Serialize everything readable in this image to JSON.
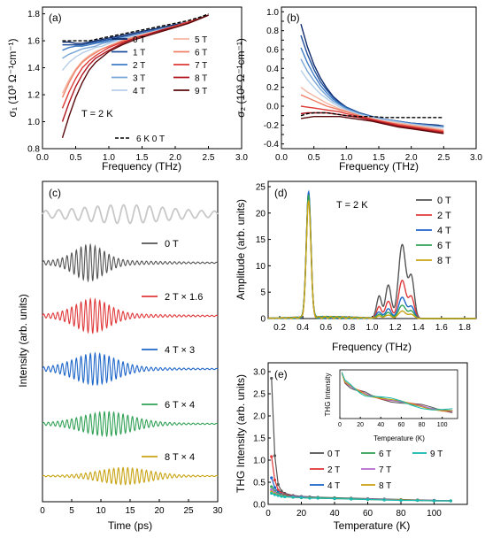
{
  "chart_data": [
    {
      "panel": "a",
      "type": "line",
      "panel_label": "(a)",
      "xlabel": "Frequency (THz)",
      "ylabel": "σ₁ (10³ Ω⁻¹cm⁻¹)",
      "annotation": "T = 2 K",
      "xlim": [
        0.0,
        3.0
      ],
      "ylim": [
        0.8,
        1.85
      ],
      "xticks": [
        "0.0",
        "0.5",
        "1.0",
        "1.5",
        "2.0",
        "2.5",
        "3.0"
      ],
      "yticks": [
        "0.8",
        "1.0",
        "1.2",
        "1.4",
        "1.6",
        "1.8"
      ],
      "legend_position": "bottom-right",
      "x": [
        0.3,
        0.4,
        0.5,
        0.6,
        0.7,
        0.8,
        0.9,
        1.0,
        1.2,
        1.4,
        1.6,
        1.8,
        2.0,
        2.2,
        2.4,
        2.5
      ],
      "series": [
        {
          "name": "0 T",
          "color": "#0d2a6b",
          "values": [
            1.59,
            1.59,
            1.58,
            1.58,
            1.59,
            1.6,
            1.61,
            1.62,
            1.64,
            1.66,
            1.68,
            1.7,
            1.72,
            1.74,
            1.77,
            1.79
          ]
        },
        {
          "name": "1 T",
          "color": "#1f4f9c",
          "values": [
            1.57,
            1.57,
            1.57,
            1.57,
            1.58,
            1.59,
            1.6,
            1.61,
            1.63,
            1.65,
            1.67,
            1.69,
            1.71,
            1.74,
            1.77,
            1.79
          ]
        },
        {
          "name": "2 T",
          "color": "#3f7cc4",
          "values": [
            1.53,
            1.55,
            1.56,
            1.56,
            1.57,
            1.58,
            1.59,
            1.6,
            1.62,
            1.64,
            1.67,
            1.69,
            1.71,
            1.74,
            1.77,
            1.79
          ]
        },
        {
          "name": "3 T",
          "color": "#78a6d8",
          "values": [
            1.47,
            1.5,
            1.52,
            1.54,
            1.55,
            1.56,
            1.58,
            1.59,
            1.62,
            1.64,
            1.66,
            1.69,
            1.71,
            1.74,
            1.77,
            1.79
          ]
        },
        {
          "name": "4 T",
          "color": "#b6cfe8",
          "values": [
            1.38,
            1.44,
            1.48,
            1.51,
            1.53,
            1.55,
            1.56,
            1.58,
            1.61,
            1.64,
            1.66,
            1.68,
            1.71,
            1.74,
            1.77,
            1.79
          ]
        },
        {
          "name": "5 T",
          "color": "#f4b6a2",
          "values": [
            1.21,
            1.31,
            1.39,
            1.45,
            1.49,
            1.52,
            1.54,
            1.56,
            1.6,
            1.63,
            1.66,
            1.68,
            1.71,
            1.74,
            1.77,
            1.79
          ]
        },
        {
          "name": "6 T",
          "color": "#ef8066",
          "values": [
            1.18,
            1.29,
            1.38,
            1.44,
            1.48,
            1.51,
            1.54,
            1.56,
            1.6,
            1.63,
            1.65,
            1.68,
            1.71,
            1.74,
            1.77,
            1.79
          ]
        },
        {
          "name": "7 T",
          "color": "#dd3a36",
          "values": [
            1.1,
            1.22,
            1.32,
            1.4,
            1.45,
            1.49,
            1.52,
            1.55,
            1.59,
            1.62,
            1.65,
            1.68,
            1.71,
            1.74,
            1.77,
            1.79
          ]
        },
        {
          "name": "8 T",
          "color": "#b0141e",
          "values": [
            1.0,
            1.14,
            1.26,
            1.35,
            1.42,
            1.47,
            1.5,
            1.53,
            1.58,
            1.62,
            1.65,
            1.68,
            1.7,
            1.73,
            1.77,
            1.79
          ]
        },
        {
          "name": "9 T",
          "color": "#5a0a0c",
          "values": [
            0.88,
            1.04,
            1.18,
            1.29,
            1.38,
            1.44,
            1.48,
            1.52,
            1.57,
            1.61,
            1.64,
            1.67,
            1.7,
            1.73,
            1.77,
            1.79
          ]
        },
        {
          "name": "6 K  0 T",
          "color": "#000000",
          "dashed": true,
          "values": [
            1.6,
            1.6,
            1.6,
            1.6,
            1.6,
            1.61,
            1.62,
            1.63,
            1.65,
            1.67,
            1.69,
            1.71,
            1.73,
            1.75,
            1.78,
            1.8
          ]
        }
      ]
    },
    {
      "panel": "b",
      "type": "line",
      "panel_label": "(b)",
      "xlabel": "Frequency (THz)",
      "ylabel": "σ₂ (10³ Ω⁻¹cm⁻¹)",
      "xlim": [
        0.0,
        3.0
      ],
      "ylim": [
        -0.45,
        1.05
      ],
      "xticks": [
        "0.0",
        "0.5",
        "1.0",
        "1.5",
        "2.0",
        "2.5",
        "3.0"
      ],
      "yticks": [
        "-0.4",
        "-0.3",
        "-0.2",
        "-0.1",
        "0.0",
        "0.1",
        "0.2",
        "0.3",
        "0.4",
        "0.5",
        "0.6",
        "0.7",
        "0.8",
        "0.9",
        "1.0"
      ],
      "x": [
        0.3,
        0.4,
        0.5,
        0.6,
        0.7,
        0.8,
        0.9,
        1.0,
        1.2,
        1.4,
        1.6,
        1.8,
        2.0,
        2.2,
        2.4,
        2.5
      ],
      "series": [
        {
          "name": "0 T",
          "color": "#0d2a6b",
          "values": [
            0.87,
            0.63,
            0.44,
            0.3,
            0.19,
            0.1,
            0.04,
            -0.01,
            -0.07,
            -0.11,
            -0.14,
            -0.16,
            -0.18,
            -0.19,
            -0.2,
            -0.21
          ]
        },
        {
          "name": "1 T",
          "color": "#1f4f9c",
          "values": [
            0.75,
            0.55,
            0.39,
            0.26,
            0.17,
            0.09,
            0.03,
            -0.01,
            -0.07,
            -0.11,
            -0.14,
            -0.16,
            -0.18,
            -0.19,
            -0.21,
            -0.21
          ]
        },
        {
          "name": "2 T",
          "color": "#3f7cc4",
          "values": [
            0.62,
            0.46,
            0.33,
            0.22,
            0.14,
            0.07,
            0.02,
            -0.02,
            -0.08,
            -0.11,
            -0.14,
            -0.16,
            -0.18,
            -0.2,
            -0.21,
            -0.22
          ]
        },
        {
          "name": "3 T",
          "color": "#78a6d8",
          "values": [
            0.5,
            0.37,
            0.27,
            0.18,
            0.11,
            0.05,
            0.01,
            -0.03,
            -0.08,
            -0.12,
            -0.14,
            -0.17,
            -0.19,
            -0.2,
            -0.22,
            -0.22
          ]
        },
        {
          "name": "4 T",
          "color": "#b6cfe8",
          "values": [
            0.38,
            0.28,
            0.2,
            0.13,
            0.08,
            0.03,
            -0.01,
            -0.04,
            -0.09,
            -0.12,
            -0.15,
            -0.17,
            -0.19,
            -0.21,
            -0.22,
            -0.23
          ]
        },
        {
          "name": "5 T",
          "color": "#f4b6a2",
          "values": [
            0.2,
            0.15,
            0.11,
            0.07,
            0.03,
            0.0,
            -0.03,
            -0.05,
            -0.1,
            -0.13,
            -0.16,
            -0.18,
            -0.2,
            -0.22,
            -0.24,
            -0.25
          ]
        },
        {
          "name": "6 T",
          "color": "#ef8066",
          "values": [
            0.12,
            0.09,
            0.06,
            0.03,
            0.0,
            -0.02,
            -0.04,
            -0.06,
            -0.1,
            -0.14,
            -0.17,
            -0.19,
            -0.21,
            -0.23,
            -0.25,
            -0.26
          ]
        },
        {
          "name": "7 T",
          "color": "#dd3a36",
          "values": [
            0.0,
            -0.01,
            -0.02,
            -0.03,
            -0.04,
            -0.05,
            -0.06,
            -0.08,
            -0.11,
            -0.14,
            -0.17,
            -0.2,
            -0.22,
            -0.24,
            -0.26,
            -0.27
          ]
        },
        {
          "name": "8 T",
          "color": "#b0141e",
          "values": [
            -0.08,
            -0.07,
            -0.07,
            -0.07,
            -0.07,
            -0.08,
            -0.09,
            -0.1,
            -0.12,
            -0.15,
            -0.18,
            -0.21,
            -0.23,
            -0.25,
            -0.27,
            -0.28
          ]
        },
        {
          "name": "9 T",
          "color": "#5a0a0c",
          "values": [
            -0.13,
            -0.12,
            -0.11,
            -0.11,
            -0.11,
            -0.11,
            -0.11,
            -0.12,
            -0.14,
            -0.16,
            -0.19,
            -0.22,
            -0.24,
            -0.26,
            -0.28,
            -0.29
          ]
        },
        {
          "name": "6 K  0 T",
          "color": "#000000",
          "dashed": true,
          "values": [
            -0.1,
            -0.08,
            -0.07,
            -0.07,
            -0.07,
            -0.08,
            -0.09,
            -0.1,
            -0.11,
            -0.11,
            -0.12,
            -0.12,
            -0.12,
            -0.12,
            -0.12,
            -0.12
          ]
        }
      ]
    },
    {
      "panel": "c",
      "type": "line",
      "panel_label": "(c)",
      "xlabel": "Time (ps)",
      "ylabel": "Intensity (arb. units)",
      "xlim": [
        0,
        30
      ],
      "xticks": [
        "0",
        "5",
        "10",
        "15",
        "20",
        "25",
        "30"
      ],
      "note": "stacked time-domain traces, offset vertically",
      "series": [
        {
          "name": "",
          "color": "#c8c8c8",
          "center_ps": 14,
          "width_ps": 10,
          "amplitude": 0.35,
          "freq_thz": 0.45
        },
        {
          "name": "0 T",
          "color": "#555555",
          "center_ps": 8,
          "width_ps": 3.5,
          "amplitude": 0.75,
          "freq_thz": 1.25
        },
        {
          "name": "2 T × 1.6",
          "color": "#e0393b",
          "center_ps": 8.5,
          "width_ps": 4,
          "amplitude": 0.7,
          "freq_thz": 1.25
        },
        {
          "name": "4 T × 3",
          "color": "#1f67c9",
          "center_ps": 9,
          "width_ps": 5,
          "amplitude": 0.65,
          "freq_thz": 1.25
        },
        {
          "name": "6 T × 4",
          "color": "#32a257",
          "center_ps": 11,
          "width_ps": 6,
          "amplitude": 0.5,
          "freq_thz": 1.25
        },
        {
          "name": "8 T × 4",
          "color": "#c9a413",
          "center_ps": 14,
          "width_ps": 6,
          "amplitude": 0.35,
          "freq_thz": 1.25
        }
      ]
    },
    {
      "panel": "d",
      "type": "line",
      "panel_label": "(d)",
      "xlabel": "Frequency (THz)",
      "ylabel": "Amplitude (arb. units)",
      "annotation": "T = 2 K",
      "xlim": [
        0.1,
        1.9
      ],
      "ylim": [
        0,
        26
      ],
      "xticks": [
        "0.2",
        "0.4",
        "0.6",
        "0.8",
        "1.0",
        "1.2",
        "1.4",
        "1.6",
        "1.8"
      ],
      "yticks": [
        "0",
        "5",
        "10",
        "15",
        "20",
        "25"
      ],
      "legend_position": "top-right",
      "series": [
        {
          "name": "0 T",
          "color": "#555555",
          "fundamental": 23.5,
          "third_harmonic": 14.0
        },
        {
          "name": "2 T",
          "color": "#e0393b",
          "fundamental": 23.2,
          "third_harmonic": 7.2
        },
        {
          "name": "4 T",
          "color": "#1f67c9",
          "fundamental": 23.8,
          "third_harmonic": 4.0
        },
        {
          "name": "6 T",
          "color": "#32a257",
          "fundamental": 23.0,
          "third_harmonic": 2.5
        },
        {
          "name": "8 T",
          "color": "#c9a413",
          "fundamental": 22.2,
          "third_harmonic": 1.4
        }
      ]
    },
    {
      "panel": "e",
      "type": "line",
      "panel_label": "(e)",
      "xlabel": "Temperature (K)",
      "ylabel": "THG Intensity (arb. units)",
      "xlim": [
        0,
        120
      ],
      "ylim": [
        0,
        3.2
      ],
      "xticks": [
        "0",
        "20",
        "40",
        "60",
        "80",
        "100"
      ],
      "yticks": [
        "0.0",
        "0.5",
        "1.0",
        "1.5",
        "2.0",
        "2.5",
        "3.0"
      ],
      "legend_position": "bottom-right",
      "x": [
        2,
        4,
        6,
        8,
        10,
        15,
        20,
        25,
        30,
        40,
        50,
        60,
        70,
        80,
        90,
        100,
        110
      ],
      "series": [
        {
          "name": "0 T",
          "color": "#555555",
          "values": [
            2.85,
            1.1,
            0.45,
            0.3,
            0.25,
            0.2,
            0.18,
            0.17,
            0.16,
            0.15,
            0.14,
            0.13,
            0.12,
            0.11,
            0.1,
            0.09,
            0.08
          ]
        },
        {
          "name": "2 T",
          "color": "#e0393b",
          "values": [
            1.08,
            0.55,
            0.32,
            0.25,
            0.22,
            0.19,
            0.17,
            0.16,
            0.15,
            0.14,
            0.13,
            0.12,
            0.11,
            0.1,
            0.09,
            0.09,
            0.08
          ]
        },
        {
          "name": "4 T",
          "color": "#1f67c9",
          "values": [
            0.6,
            0.38,
            0.27,
            0.22,
            0.2,
            0.18,
            0.17,
            0.16,
            0.15,
            0.14,
            0.13,
            0.12,
            0.11,
            0.1,
            0.09,
            0.09,
            0.08
          ]
        },
        {
          "name": "6 T",
          "color": "#32a257",
          "values": [
            0.4,
            0.3,
            0.24,
            0.21,
            0.19,
            0.17,
            0.16,
            0.15,
            0.15,
            0.14,
            0.13,
            0.12,
            0.11,
            0.1,
            0.09,
            0.08,
            0.08
          ]
        },
        {
          "name": "7 T",
          "color": "#b46ed0",
          "values": [
            0.33,
            0.27,
            0.22,
            0.2,
            0.18,
            0.17,
            0.16,
            0.15,
            0.14,
            0.13,
            0.12,
            0.12,
            0.11,
            0.1,
            0.09,
            0.08,
            0.08
          ]
        },
        {
          "name": "8 T",
          "color": "#c9a413",
          "values": [
            0.28,
            0.24,
            0.21,
            0.19,
            0.18,
            0.16,
            0.15,
            0.15,
            0.14,
            0.13,
            0.12,
            0.11,
            0.1,
            0.1,
            0.09,
            0.08,
            0.08
          ]
        },
        {
          "name": "9 T",
          "color": "#17b8b0",
          "values": [
            0.25,
            0.22,
            0.2,
            0.18,
            0.17,
            0.16,
            0.15,
            0.14,
            0.14,
            0.13,
            0.12,
            0.11,
            0.1,
            0.09,
            0.09,
            0.08,
            0.08
          ]
        }
      ],
      "inset": {
        "xlabel": "Temperature (K)",
        "ylabel": "THG Intensity",
        "xlim": [
          0,
          115
        ],
        "xticks": [
          "0",
          "20",
          "40",
          "60",
          "80",
          "100"
        ],
        "x": [
          2,
          5,
          10,
          15,
          20,
          25,
          30,
          40,
          50,
          60,
          70,
          80,
          90,
          100,
          110
        ],
        "values": [
          1.0,
          0.8,
          0.7,
          0.62,
          0.57,
          0.53,
          0.5,
          0.45,
          0.4,
          0.35,
          0.3,
          0.26,
          0.22,
          0.19,
          0.17
        ]
      }
    }
  ]
}
